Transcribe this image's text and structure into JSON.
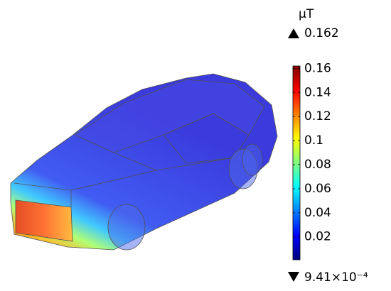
{
  "chart_data": {
    "type": "colorbar-plot",
    "unit": "μT",
    "max": 0.162,
    "min": {
      "value": 0.000941,
      "label": "9.41×10⁻⁴"
    },
    "yticks": [
      0.02,
      0.04,
      0.06,
      0.08,
      0.1,
      0.12,
      0.14,
      0.16
    ],
    "colormap": [
      "#00007f",
      "#0000ff",
      "#0080ff",
      "#00ffff",
      "#80ff80",
      "#ffff00",
      "#ff8000",
      "#ff0000",
      "#7f0000"
    ]
  }
}
